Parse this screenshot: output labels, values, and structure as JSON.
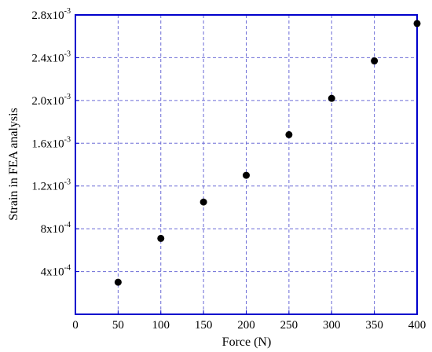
{
  "chart_data": {
    "type": "scatter",
    "title": "",
    "xlabel": "Force (N)",
    "ylabel": "Strain in FEA analysis",
    "xlim": [
      0,
      400
    ],
    "ylim": [
      0,
      0.0028
    ],
    "x_ticks": [
      0,
      50,
      100,
      150,
      200,
      250,
      300,
      350,
      400
    ],
    "x_tick_labels": [
      "0",
      "50",
      "100",
      "150",
      "200",
      "250",
      "300",
      "350",
      "400"
    ],
    "y_ticks": [
      0.0004,
      0.0008,
      0.0012,
      0.0016,
      0.002,
      0.0024,
      0.0028
    ],
    "y_tick_labels": [
      {
        "mantissa": "4x10",
        "exponent": "-4"
      },
      {
        "mantissa": "8x10",
        "exponent": "-4"
      },
      {
        "mantissa": "1.2x10",
        "exponent": "-3"
      },
      {
        "mantissa": "1.6x10",
        "exponent": "-3"
      },
      {
        "mantissa": "2.0x10",
        "exponent": "-3"
      },
      {
        "mantissa": "2.4x10",
        "exponent": "-3"
      },
      {
        "mantissa": "2.8x10",
        "exponent": "-3"
      }
    ],
    "grid": true,
    "series": [
      {
        "x": [
          50,
          100,
          150,
          200,
          250,
          300,
          350,
          400
        ],
        "y": [
          0.0003,
          0.00071,
          0.00105,
          0.0013,
          0.00168,
          0.00202,
          0.00237,
          0.00272
        ]
      }
    ],
    "colors": {
      "frame": "#0000cc",
      "grid": "#6b6bd6",
      "marker": "#000000"
    }
  }
}
